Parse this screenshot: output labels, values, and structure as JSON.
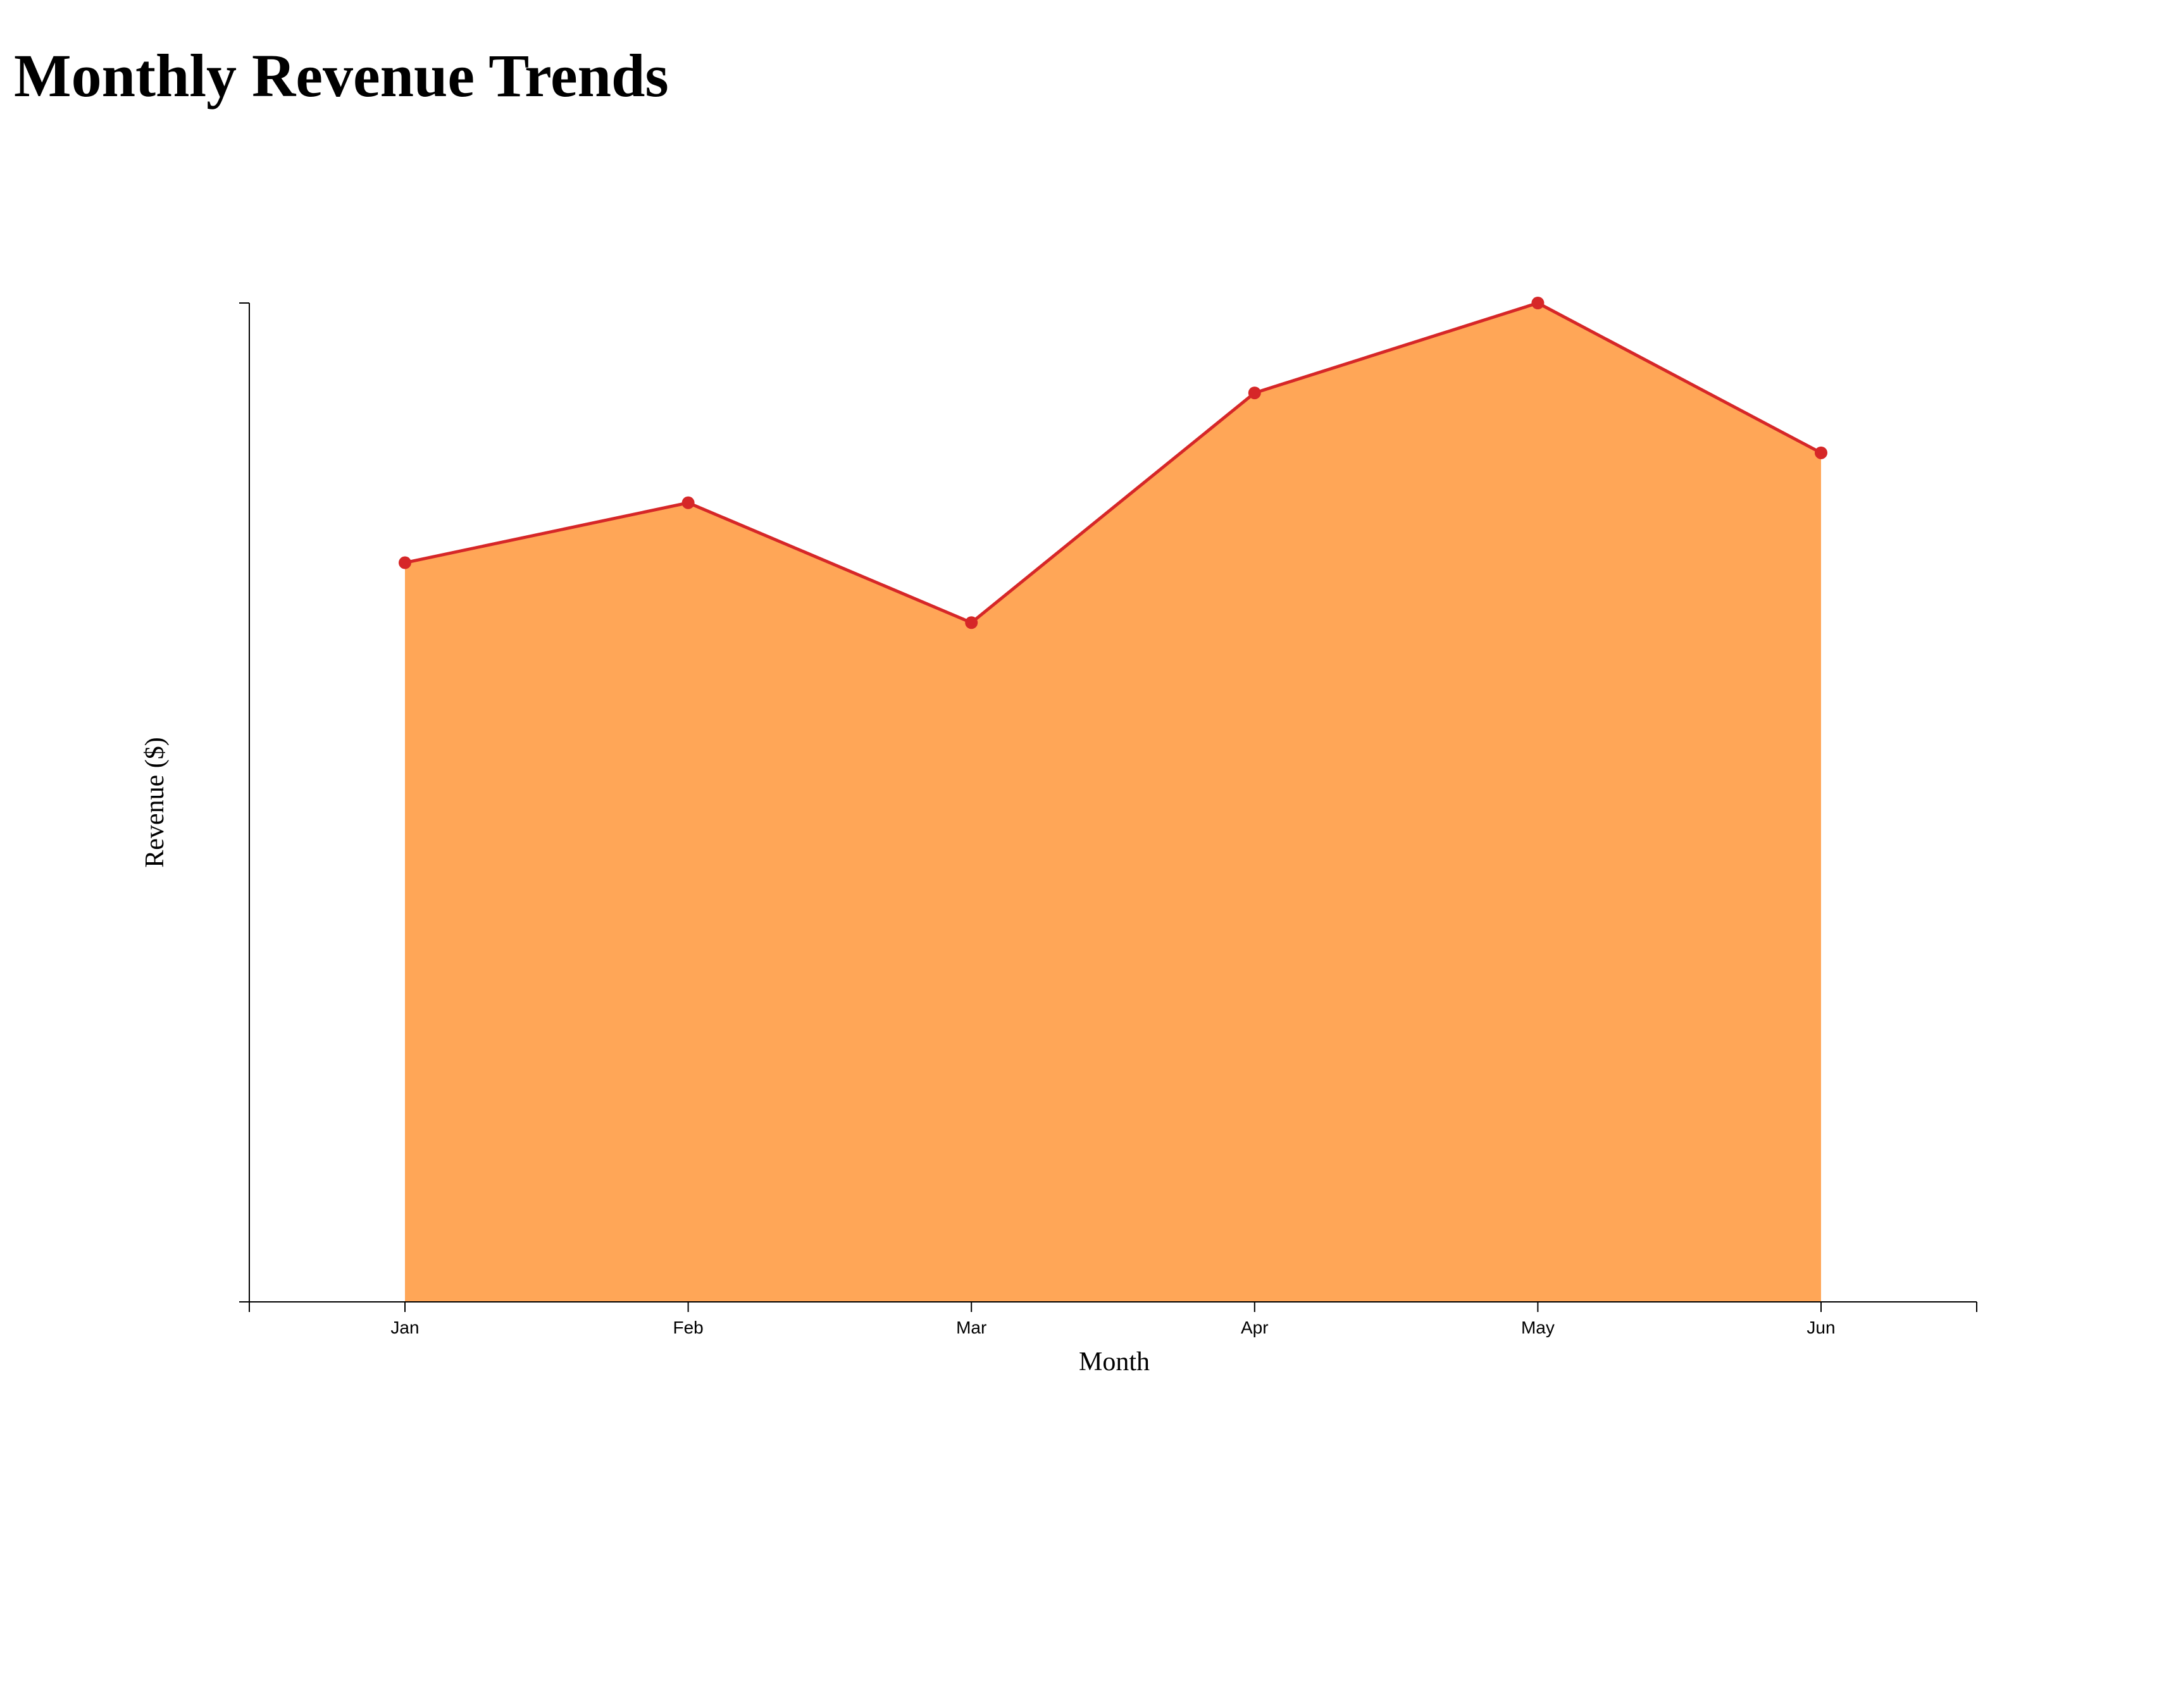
{
  "page": {
    "title": "Monthly Revenue Trends"
  },
  "chart_data": {
    "type": "area",
    "categories": [
      "Jan",
      "Feb",
      "Mar",
      "Apr",
      "May",
      "Jun"
    ],
    "series": [
      {
        "values": [
          74,
          80,
          68,
          91,
          100,
          85
        ],
        "line_color": "#d62728",
        "fill_color": "#ffa657",
        "marker_color": "#d62728"
      }
    ],
    "xlabel": "Month",
    "ylabel": "Revenue ($)",
    "ylim": [
      0,
      100
    ],
    "y_tick_labels_shown": false,
    "grid": false,
    "legend": "none"
  }
}
